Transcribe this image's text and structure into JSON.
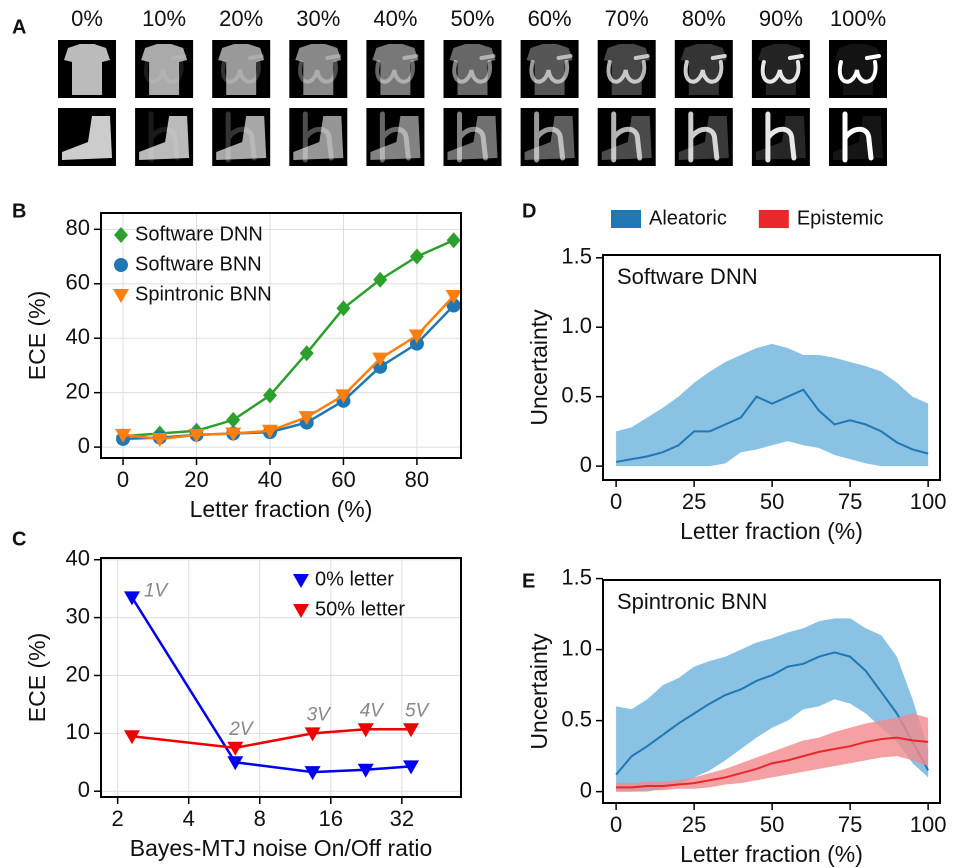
{
  "panel_labels": [
    "A",
    "B",
    "C",
    "D",
    "E"
  ],
  "panel_a": {
    "labels": [
      "0%",
      "10%",
      "20%",
      "30%",
      "40%",
      "50%",
      "60%",
      "70%",
      "80%",
      "90%",
      "100%"
    ]
  },
  "chart_data": [
    {
      "type": "line",
      "xlabel": "Letter fraction (%)",
      "ylabel": "ECE (%)",
      "x": [
        0,
        10,
        20,
        30,
        40,
        50,
        60,
        70,
        80,
        90
      ],
      "xlim": [
        -6,
        92
      ],
      "ylim": [
        -4,
        86
      ],
      "xticks": [
        0,
        20,
        40,
        60,
        80
      ],
      "yticks": [
        0,
        20,
        40,
        60,
        80
      ],
      "grid": true,
      "legend": "upper left",
      "series": [
        {
          "name": "Software DNN",
          "color": "#2ca02c",
          "marker": "diamond",
          "values": [
            4,
            5,
            6,
            10,
            19,
            34.5,
            51,
            61.5,
            70,
            76
          ]
        },
        {
          "name": "Software BNN",
          "color": "#1f77b4",
          "marker": "circle",
          "values": [
            3,
            3.5,
            4.5,
            5,
            5.5,
            9,
            17,
            29.5,
            38,
            52
          ]
        },
        {
          "name": "Spintronic BNN",
          "color": "#ff7f0e",
          "marker": "triangle-down",
          "values": [
            4.5,
            3,
            4.5,
            5,
            6,
            11,
            19,
            32.5,
            41,
            55.5
          ]
        }
      ]
    },
    {
      "type": "line",
      "xlabel": "Bayes-MTJ noise On/Off ratio",
      "ylabel": "ECE (%)",
      "x": [
        2.3,
        6.3,
        13.4,
        22.5,
        35
      ],
      "log_x": 2,
      "xlim": [
        1.7,
        57
      ],
      "ylim": [
        -1,
        40.3
      ],
      "xticks": [
        2,
        4,
        8,
        16,
        32
      ],
      "yticks": [
        0,
        10,
        20,
        30,
        40
      ],
      "grid": true,
      "legend": "upper right",
      "point_labels": [
        "1V",
        "2V",
        "3V",
        "4V",
        "5V"
      ],
      "series": [
        {
          "name": "0% letter",
          "color": "#0000ee",
          "marker": "triangle-down",
          "values": [
            33.5,
            5,
            3.3,
            3.7,
            4.3
          ]
        },
        {
          "name": "50% letter",
          "color": "#ee0000",
          "marker": "triangle-down",
          "values": [
            9.5,
            7.5,
            10,
            10.7,
            10.7
          ]
        }
      ]
    },
    {
      "type": "line",
      "title": "Software DNN",
      "xlabel": "Letter fraction (%)",
      "ylabel": "Uncertainty",
      "x": [
        0,
        5,
        10,
        15,
        20,
        25,
        30,
        35,
        40,
        45,
        50,
        55,
        60,
        65,
        70,
        75,
        80,
        85,
        90,
        95,
        100
      ],
      "xlim": [
        -4.2,
        103.8
      ],
      "ylim": [
        -0.1,
        1.52
      ],
      "xticks": [
        0,
        25,
        50,
        75,
        100
      ],
      "yticks": [
        0,
        0.5,
        {
          "value": 1,
          "label": "1.0"
        },
        1.5
      ],
      "grid": false,
      "legend": "above",
      "legend_items": [
        {
          "name": "Aleatoric",
          "color": "#1f77b4"
        },
        {
          "name": "Epistemic",
          "color": "#e8282b"
        }
      ],
      "series": [
        {
          "color": "#1f77b4",
          "band_color": "#6bb3dc",
          "values": [
            0.03,
            0.05,
            0.07,
            0.1,
            0.15,
            0.25,
            0.25,
            0.3,
            0.35,
            0.5,
            0.45,
            0.5,
            0.55,
            0.4,
            0.3,
            0.33,
            0.3,
            0.25,
            0.17,
            0.12,
            0.09
          ],
          "upper": [
            0.25,
            0.28,
            0.35,
            0.42,
            0.5,
            0.6,
            0.68,
            0.75,
            0.8,
            0.85,
            0.88,
            0.85,
            0.8,
            0.8,
            0.78,
            0.75,
            0.72,
            0.68,
            0.6,
            0.5,
            0.45
          ],
          "lower": [
            0,
            0,
            0,
            0,
            0,
            0,
            0,
            0.02,
            0.1,
            0.12,
            0.15,
            0.18,
            0.15,
            0.13,
            0.08,
            0.05,
            0.02,
            0,
            0,
            0,
            0
          ]
        }
      ]
    },
    {
      "type": "line",
      "title": "Spintronic BNN",
      "xlabel": "Letter fraction (%)",
      "ylabel": "Uncertainty",
      "x": [
        0,
        5,
        10,
        15,
        20,
        25,
        30,
        35,
        40,
        45,
        50,
        55,
        60,
        65,
        70,
        75,
        80,
        85,
        90,
        95,
        100
      ],
      "xlim": [
        -4.2,
        103.8
      ],
      "ylim": [
        -0.08,
        1.49
      ],
      "xticks": [
        0,
        25,
        50,
        75,
        100
      ],
      "yticks": [
        0,
        0.5,
        {
          "value": 1,
          "label": "1.0"
        },
        1.5
      ],
      "grid": false,
      "series": [
        {
          "color": "#1f77b4",
          "band_color": "#6bb3dc",
          "values": [
            0.12,
            0.25,
            0.32,
            0.4,
            0.48,
            0.55,
            0.62,
            0.68,
            0.72,
            0.78,
            0.82,
            0.88,
            0.9,
            0.95,
            0.98,
            0.95,
            0.85,
            0.7,
            0.55,
            0.35,
            0.15
          ],
          "upper": [
            0.6,
            0.58,
            0.65,
            0.75,
            0.8,
            0.88,
            0.92,
            0.95,
            1.0,
            1.05,
            1.08,
            1.12,
            1.15,
            1.2,
            1.22,
            1.22,
            1.15,
            1.1,
            0.95,
            0.65,
            0.3
          ],
          "lower": [
            0,
            0,
            0,
            0.02,
            0.05,
            0.1,
            0.15,
            0.22,
            0.3,
            0.38,
            0.45,
            0.5,
            0.58,
            0.6,
            0.65,
            0.62,
            0.55,
            0.45,
            0.35,
            0.2,
            0.1
          ]
        },
        {
          "color": "#e8282b",
          "band_color": "#f28a8c",
          "values": [
            0.03,
            0.03,
            0.04,
            0.04,
            0.05,
            0.06,
            0.08,
            0.1,
            0.13,
            0.16,
            0.2,
            0.22,
            0.25,
            0.28,
            0.3,
            0.32,
            0.35,
            0.37,
            0.38,
            0.36,
            0.35
          ],
          "upper": [
            0.06,
            0.06,
            0.07,
            0.07,
            0.08,
            0.1,
            0.13,
            0.16,
            0.2,
            0.24,
            0.28,
            0.32,
            0.36,
            0.38,
            0.42,
            0.45,
            0.48,
            0.5,
            0.52,
            0.55,
            0.52
          ],
          "lower": [
            0,
            0,
            0.01,
            0.01,
            0.02,
            0.02,
            0.03,
            0.05,
            0.06,
            0.08,
            0.1,
            0.12,
            0.14,
            0.16,
            0.18,
            0.2,
            0.22,
            0.24,
            0.25,
            0.22,
            0.18
          ]
        }
      ]
    }
  ]
}
